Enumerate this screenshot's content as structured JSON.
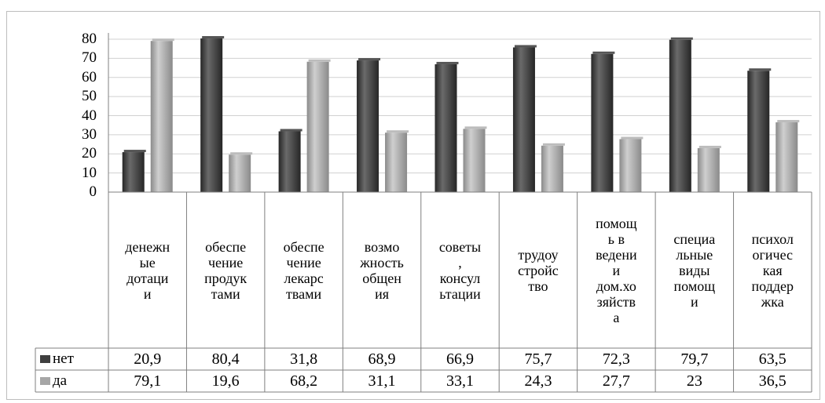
{
  "chart_data": {
    "type": "bar",
    "categories": [
      "денежные дотации",
      "обеспечение продуктами",
      "обеспечение лекарствами",
      "возможность общения",
      "советы, консультации",
      "трудоустройство",
      "помощь в ведении дом.хозяйства",
      "специальные виды помощи",
      "психологическая поддержка"
    ],
    "category_lines": [
      [
        "денежн",
        "ые",
        "дотаци",
        "и"
      ],
      [
        "обеспе",
        "чение",
        "продук",
        "тами"
      ],
      [
        "обеспе",
        "чение",
        "лекарс",
        "твами"
      ],
      [
        "возмо",
        "жность",
        "общен",
        "ия"
      ],
      [
        "советы",
        ",",
        "консул",
        "ьтации"
      ],
      [
        "трудоу",
        "стройс",
        "тво"
      ],
      [
        "помощ",
        "ь в",
        "ведени",
        "и",
        "дом.хо",
        "зяйств",
        "а"
      ],
      [
        "специа",
        "льные",
        "виды",
        "помощ",
        "и"
      ],
      [
        "психол",
        "огичес",
        "кая",
        "поддер",
        "жка"
      ]
    ],
    "series": [
      {
        "name": "нет",
        "values": [
          20.9,
          80.4,
          31.8,
          68.9,
          66.9,
          75.7,
          72.3,
          79.7,
          63.5
        ],
        "labels": [
          "20,9",
          "80,4",
          "31,8",
          "68,9",
          "66,9",
          "75,7",
          "72,3",
          "79,7",
          "63,5"
        ],
        "color": "#3f3f3f"
      },
      {
        "name": "да",
        "values": [
          79.1,
          19.6,
          68.2,
          31.1,
          33.1,
          24.3,
          27.7,
          23,
          36.5
        ],
        "labels": [
          "79,1",
          "19,6",
          "68,2",
          "31,1",
          "33,1",
          "24,3",
          "27,7",
          "23",
          "36,5"
        ],
        "color": "#a6a6a6"
      }
    ],
    "yticks": [
      "0",
      "10",
      "20",
      "30",
      "40",
      "50",
      "60",
      "70",
      "80"
    ],
    "ylim": [
      0,
      80
    ],
    "grid": true,
    "data_table": true,
    "legend": "data-table-left"
  }
}
